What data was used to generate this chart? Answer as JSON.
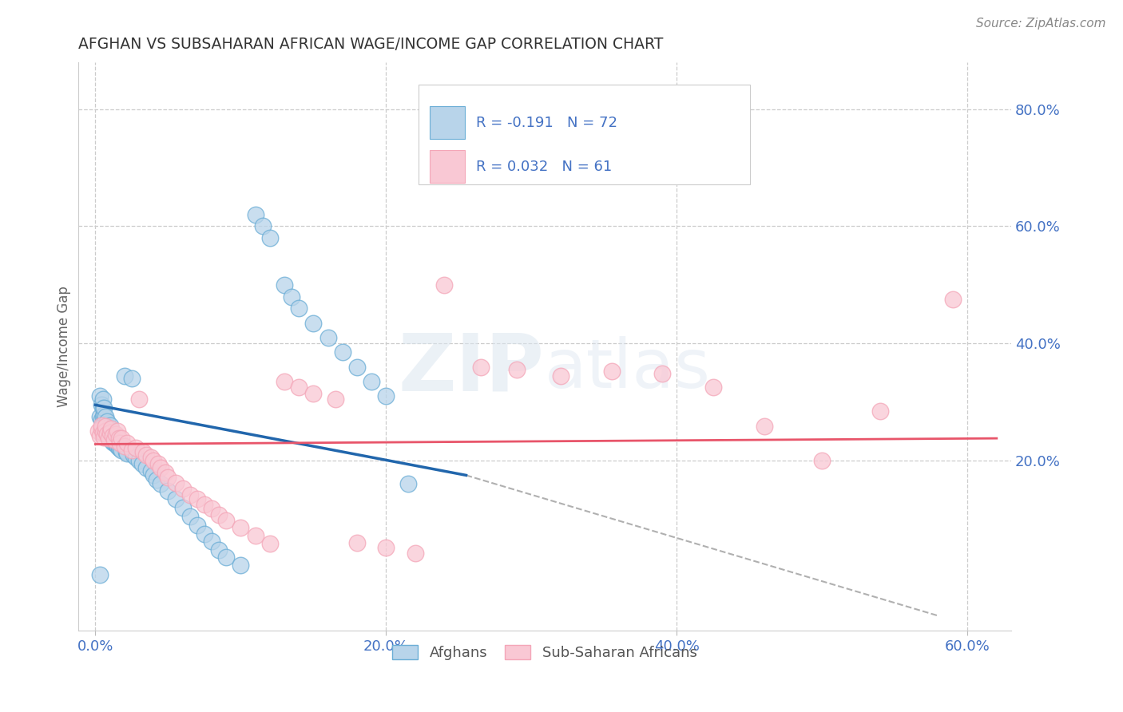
{
  "title": "AFGHAN VS SUBSAHARAN AFRICAN WAGE/INCOME GAP CORRELATION CHART",
  "source": "Source: ZipAtlas.com",
  "ylabel": "Wage/Income Gap",
  "watermark_zip": "ZIP",
  "watermark_atlas": "atlas",
  "title_color": "#333333",
  "axis_color": "#4472c4",
  "grid_color": "#cccccc",
  "blue_color": "#6baed6",
  "pink_color": "#f4a6b8",
  "blue_fill": "#b8d4ea",
  "pink_fill": "#f9c8d4",
  "background_color": "#ffffff",
  "xlim": [
    -0.012,
    0.63
  ],
  "ylim": [
    -0.09,
    0.88
  ],
  "x_ticks": [
    0.0,
    0.2,
    0.4,
    0.6
  ],
  "y_ticks_right": [
    0.8,
    0.6,
    0.4,
    0.2
  ],
  "blue_line": [
    [
      0.0,
      0.295
    ],
    [
      0.255,
      0.175
    ]
  ],
  "gray_dash_line": [
    [
      0.255,
      0.175
    ],
    [
      0.58,
      -0.065
    ]
  ],
  "pink_line": [
    [
      0.0,
      0.228
    ],
    [
      0.62,
      0.238
    ]
  ],
  "afghans_x": [
    0.003,
    0.003,
    0.003,
    0.004,
    0.004,
    0.005,
    0.005,
    0.005,
    0.005,
    0.006,
    0.006,
    0.006,
    0.006,
    0.007,
    0.007,
    0.007,
    0.008,
    0.008,
    0.008,
    0.009,
    0.009,
    0.01,
    0.01,
    0.01,
    0.011,
    0.011,
    0.012,
    0.012,
    0.013,
    0.014,
    0.014,
    0.015,
    0.015,
    0.016,
    0.017,
    0.018,
    0.02,
    0.021,
    0.022,
    0.025,
    0.026,
    0.028,
    0.03,
    0.032,
    0.035,
    0.038,
    0.04,
    0.042,
    0.045,
    0.05,
    0.055,
    0.06,
    0.065,
    0.07,
    0.075,
    0.08,
    0.085,
    0.09,
    0.1,
    0.11,
    0.115,
    0.12,
    0.13,
    0.135,
    0.14,
    0.15,
    0.16,
    0.17,
    0.18,
    0.19,
    0.2,
    0.215
  ],
  "afghans_y": [
    0.005,
    0.275,
    0.31,
    0.27,
    0.295,
    0.26,
    0.275,
    0.29,
    0.305,
    0.255,
    0.265,
    0.278,
    0.29,
    0.25,
    0.262,
    0.275,
    0.245,
    0.255,
    0.267,
    0.242,
    0.255,
    0.238,
    0.248,
    0.26,
    0.235,
    0.245,
    0.232,
    0.242,
    0.23,
    0.228,
    0.238,
    0.225,
    0.235,
    0.222,
    0.22,
    0.218,
    0.345,
    0.215,
    0.212,
    0.34,
    0.21,
    0.205,
    0.2,
    0.195,
    0.188,
    0.182,
    0.175,
    0.168,
    0.16,
    0.148,
    0.135,
    0.12,
    0.105,
    0.09,
    0.075,
    0.062,
    0.048,
    0.035,
    0.022,
    0.62,
    0.6,
    0.58,
    0.5,
    0.48,
    0.46,
    0.435,
    0.41,
    0.385,
    0.36,
    0.335,
    0.31,
    0.16
  ],
  "subsaharan_x": [
    0.002,
    0.003,
    0.004,
    0.004,
    0.005,
    0.006,
    0.007,
    0.007,
    0.008,
    0.009,
    0.01,
    0.011,
    0.012,
    0.013,
    0.014,
    0.015,
    0.016,
    0.017,
    0.018,
    0.02,
    0.022,
    0.025,
    0.028,
    0.03,
    0.033,
    0.035,
    0.038,
    0.04,
    0.043,
    0.045,
    0.048,
    0.05,
    0.055,
    0.06,
    0.065,
    0.07,
    0.075,
    0.08,
    0.085,
    0.09,
    0.1,
    0.11,
    0.12,
    0.13,
    0.14,
    0.15,
    0.165,
    0.18,
    0.2,
    0.22,
    0.24,
    0.265,
    0.29,
    0.32,
    0.355,
    0.39,
    0.425,
    0.46,
    0.5,
    0.54,
    0.59
  ],
  "subsaharan_y": [
    0.25,
    0.242,
    0.255,
    0.26,
    0.248,
    0.24,
    0.25,
    0.258,
    0.245,
    0.238,
    0.248,
    0.255,
    0.242,
    0.235,
    0.245,
    0.25,
    0.238,
    0.23,
    0.238,
    0.225,
    0.23,
    0.218,
    0.222,
    0.305,
    0.215,
    0.21,
    0.205,
    0.2,
    0.195,
    0.188,
    0.18,
    0.172,
    0.162,
    0.152,
    0.142,
    0.135,
    0.125,
    0.118,
    0.108,
    0.098,
    0.085,
    0.072,
    0.058,
    0.335,
    0.325,
    0.315,
    0.305,
    0.06,
    0.052,
    0.042,
    0.5,
    0.36,
    0.355,
    0.345,
    0.352,
    0.348,
    0.325,
    0.258,
    0.2,
    0.285,
    0.475
  ],
  "legend_R1": "R = -0.191",
  "legend_N1": "N = 72",
  "legend_R2": "R = 0.032",
  "legend_N2": "N = 61",
  "legend_label1": "Afghans",
  "legend_label2": "Sub-Saharan Africans"
}
